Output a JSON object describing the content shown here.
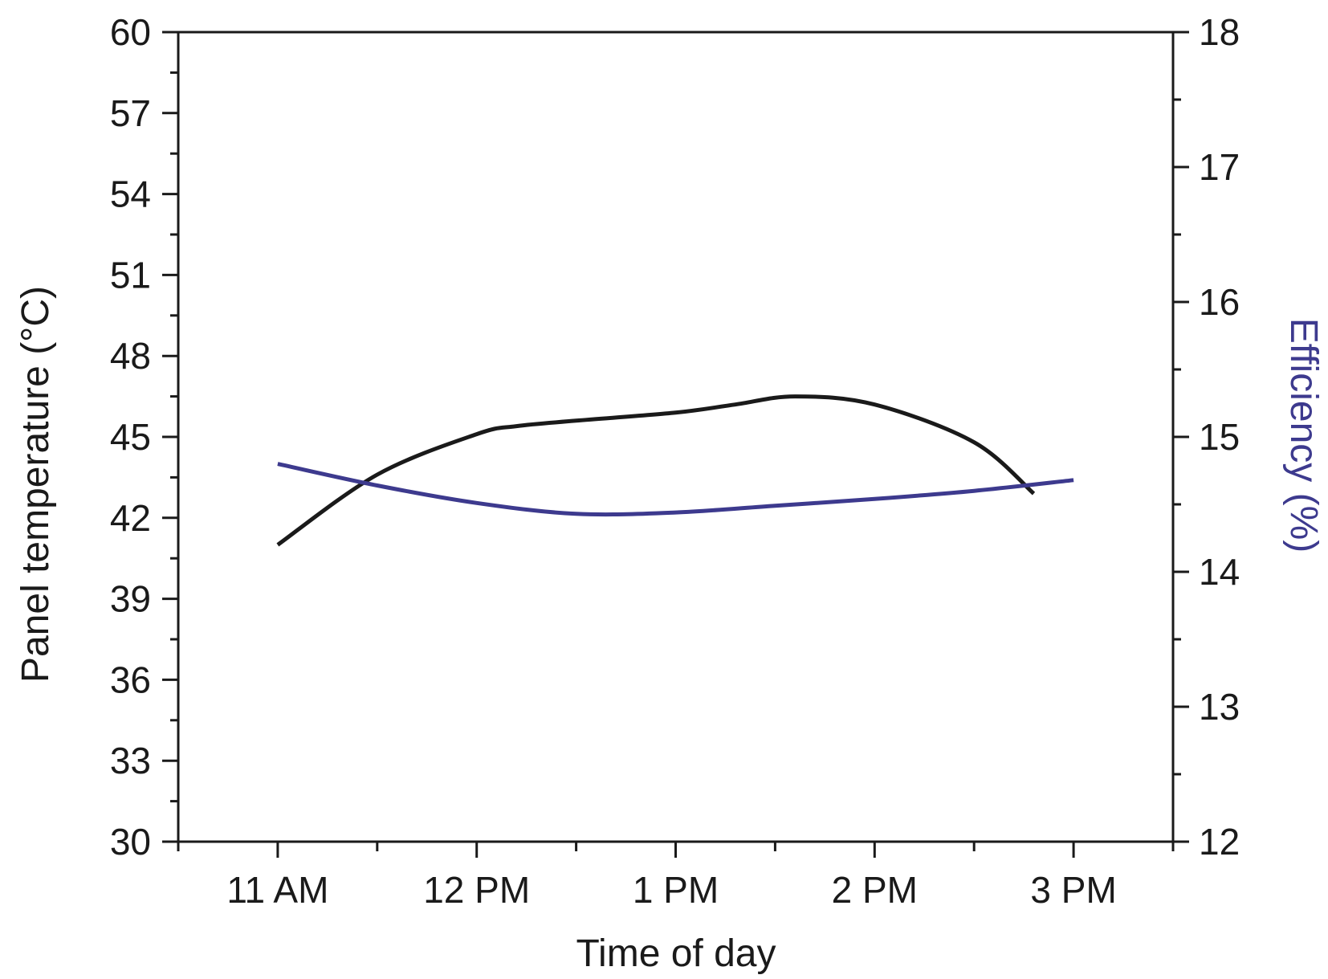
{
  "chart_data": {
    "type": "line",
    "title": "",
    "xlabel": "Time of day",
    "ylabel_left": "Panel temperature (°C)",
    "ylabel_right": "Efficiency (%)",
    "x_categories": [
      "11 AM",
      "12 PM",
      "1 PM",
      "2 PM",
      "3 PM"
    ],
    "xlim_hours": [
      10.5,
      15.5
    ],
    "ylim_left": [
      30,
      60
    ],
    "yticks_left": [
      30,
      33,
      36,
      39,
      42,
      45,
      48,
      51,
      54,
      57,
      60
    ],
    "ylim_right": [
      12,
      18
    ],
    "yticks_right": [
      12,
      13,
      14,
      15,
      16,
      17,
      18
    ],
    "grid": false,
    "series": [
      {
        "axis": "left",
        "color": "#1a1a1a",
        "x": [
          11.0,
          11.5,
          12.0,
          12.2,
          12.5,
          13.0,
          13.3,
          13.6,
          14.0,
          14.5,
          14.8
        ],
        "y": [
          41.0,
          43.6,
          45.1,
          45.4,
          45.6,
          45.9,
          46.2,
          46.5,
          46.2,
          44.8,
          42.9
        ]
      },
      {
        "axis": "right",
        "color": "#3d3a8e",
        "x": [
          11.0,
          11.5,
          12.0,
          12.5,
          13.0,
          13.5,
          14.0,
          14.5,
          15.0
        ],
        "y": [
          14.8,
          14.64,
          14.51,
          14.43,
          14.44,
          14.49,
          14.54,
          14.6,
          14.68
        ]
      }
    ],
    "colors": {
      "axis": "#1a1a1a",
      "efficiency_label": "#3d3a8e"
    }
  }
}
